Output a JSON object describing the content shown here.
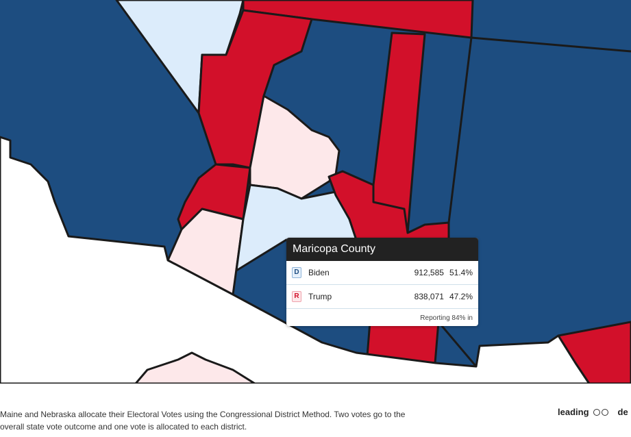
{
  "tooltip": {
    "title": "Maricopa County",
    "rows": [
      {
        "party": "D",
        "name": "Biden",
        "votes": "912,585",
        "pct": "51.4%"
      },
      {
        "party": "R",
        "name": "Trump",
        "votes": "838,071",
        "pct": "47.2%"
      }
    ],
    "reporting": "Reporting 84% in"
  },
  "footer": {
    "note_lines": [
      "Maine and Nebraska allocate their Electoral Votes using the Congressional District Method. Two votes go to the",
      "overall state vote outcome and one vote is allocated to each district."
    ],
    "legend_label": "leading",
    "cut_text": "de"
  }
}
